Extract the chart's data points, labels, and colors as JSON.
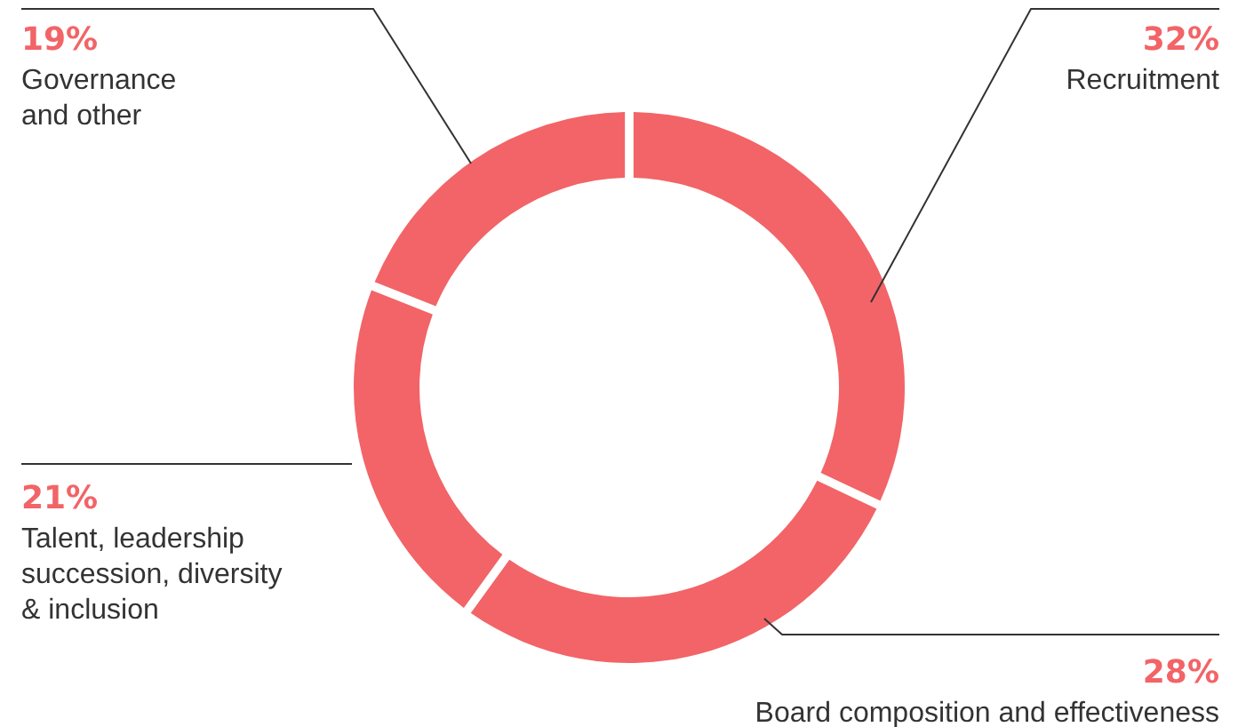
{
  "chart_data": {
    "type": "donut",
    "categories": [
      "Recruitment",
      "Board composition and effectiveness",
      "Talent, leadership succession, diversity & inclusion",
      "Governance and other"
    ],
    "values": [
      32,
      28,
      21,
      19
    ],
    "colors": [
      "#f26467",
      "#f26467",
      "#f26467",
      "#f26467"
    ],
    "value_labels": [
      "32%",
      "28%",
      "21%",
      "19%"
    ]
  }
}
